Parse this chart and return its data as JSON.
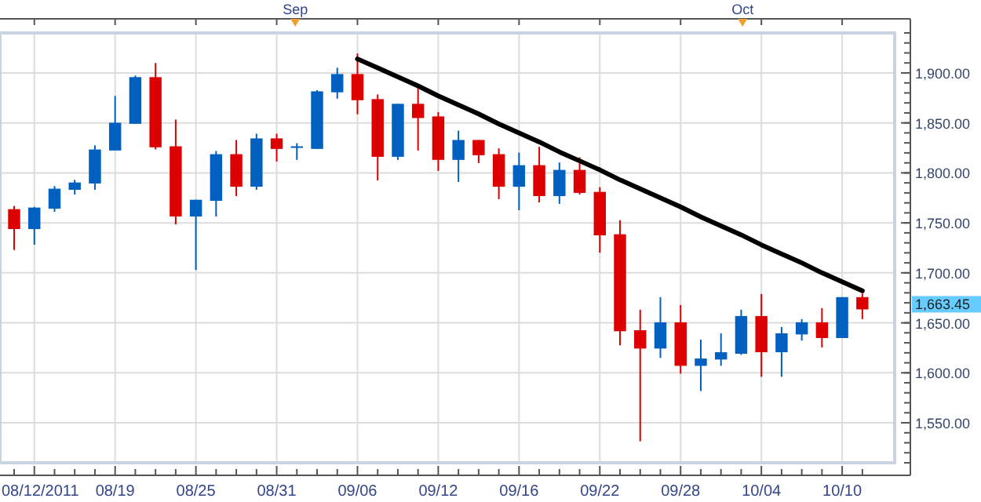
{
  "chart_data": {
    "type": "candlestick",
    "categories": [
      null,
      "08/12/2011",
      null,
      null,
      null,
      "08/19",
      null,
      null,
      null,
      "08/25",
      null,
      null,
      null,
      "08/31",
      null,
      null,
      null,
      "09/06",
      null,
      null,
      null,
      "09/12",
      null,
      null,
      null,
      "09/16",
      null,
      null,
      null,
      "09/22",
      null,
      null,
      null,
      "09/28",
      null,
      null,
      null,
      "10/04",
      null,
      null,
      null,
      "10/10",
      null
    ],
    "ohlc": [
      [
        1763.7,
        1766.9,
        1722.9,
        1743.8
      ],
      [
        1743.8,
        1766.0,
        1728.1,
        1765.3
      ],
      [
        1764.2,
        1786.8,
        1761.1,
        1784.2
      ],
      [
        1783.1,
        1793.1,
        1778.4,
        1790.4
      ],
      [
        1789.4,
        1827.6,
        1783.1,
        1823.4
      ],
      [
        1822.4,
        1876.9,
        1822.4,
        1850.2
      ],
      [
        1849.1,
        1897.4,
        1849.1,
        1895.8
      ],
      [
        1895.8,
        1909.9,
        1823.5,
        1825.6
      ],
      [
        1826.6,
        1853.3,
        1748.5,
        1756.4
      ],
      [
        1756.4,
        1773.1,
        1702.9,
        1773.1
      ],
      [
        1772.1,
        1821.9,
        1756.4,
        1818.7
      ],
      [
        1818.7,
        1832.9,
        1776.8,
        1786.2
      ],
      [
        1786.2,
        1839.2,
        1783.1,
        1834.5
      ],
      [
        1834.5,
        1839.2,
        1811.4,
        1824.0
      ],
      [
        1825.6,
        1829.7,
        1813.0,
        1826.6
      ],
      [
        1824.0,
        1882.7,
        1824.0,
        1881.6
      ],
      [
        1880.6,
        1905.2,
        1874.3,
        1898.9
      ],
      [
        1898.9,
        1919.4,
        1858.6,
        1872.7
      ],
      [
        1873.8,
        1878.5,
        1792.5,
        1816.1
      ],
      [
        1816.1,
        1869.1,
        1813.0,
        1869.1
      ],
      [
        1869.1,
        1887.4,
        1822.4,
        1854.9
      ],
      [
        1856.5,
        1860.7,
        1802.0,
        1813.0
      ],
      [
        1813.0,
        1842.3,
        1791.0,
        1832.9
      ],
      [
        1832.9,
        1832.9,
        1809.8,
        1817.7
      ],
      [
        1818.7,
        1824.5,
        1773.7,
        1786.2
      ],
      [
        1786.2,
        1820.3,
        1762.7,
        1807.7
      ],
      [
        1807.7,
        1826.1,
        1770.5,
        1776.8
      ],
      [
        1776.8,
        1810.4,
        1769.0,
        1803.0
      ],
      [
        1803.0,
        1815.6,
        1778.4,
        1780.0
      ],
      [
        1781.0,
        1785.7,
        1720.2,
        1737.5
      ],
      [
        1738.6,
        1752.7,
        1627.4,
        1641.6
      ],
      [
        1642.6,
        1663.1,
        1531.5,
        1624.3
      ],
      [
        1624.3,
        1675.7,
        1614.9,
        1650.5
      ],
      [
        1650.5,
        1667.8,
        1599.1,
        1607.0
      ],
      [
        1607.0,
        1633.2,
        1581.8,
        1614.3
      ],
      [
        1613.3,
        1639.5,
        1607.0,
        1620.6
      ],
      [
        1619.1,
        1663.1,
        1618.0,
        1656.8
      ],
      [
        1656.8,
        1678.8,
        1596.0,
        1620.6
      ],
      [
        1620.6,
        1645.8,
        1596.0,
        1639.5
      ],
      [
        1638.4,
        1653.7,
        1632.2,
        1650.5
      ],
      [
        1650.5,
        1664.7,
        1625.3,
        1634.8
      ],
      [
        1634.8,
        1675.7,
        1634.8,
        1675.7
      ],
      [
        1675.7,
        1679.3,
        1653.7,
        1663.45
      ]
    ],
    "colors": [
      "#dd0000",
      "#0060c0",
      "#0060c0",
      "#0060c0",
      "#0060c0",
      "#0060c0",
      "#0060c0",
      "#dd0000",
      "#dd0000",
      "#0060c0",
      "#0060c0",
      "#dd0000",
      "#0060c0",
      "#dd0000",
      "#0060c0",
      "#0060c0",
      "#0060c0",
      "#dd0000",
      "#dd0000",
      "#0060c0",
      "#dd0000",
      "#dd0000",
      "#0060c0",
      "#dd0000",
      "#dd0000",
      "#0060c0",
      "#dd0000",
      "#0060c0",
      "#dd0000",
      "#dd0000",
      "#dd0000",
      "#dd0000",
      "#0060c0",
      "#dd0000",
      "#0060c0",
      "#0060c0",
      "#0060c0",
      "#dd0000",
      "#0060c0",
      "#0060c0",
      "#dd0000",
      "#0060c0",
      "#dd0000"
    ],
    "series": [
      {
        "type": "line",
        "values": [
          null,
          null,
          null,
          null,
          null,
          null,
          null,
          null,
          null,
          null,
          null,
          null,
          null,
          null,
          null,
          null,
          null,
          1914,
          1905,
          1896,
          1887,
          1877,
          1868,
          1859,
          1849,
          1840,
          1831,
          1821,
          1812,
          1803,
          1793,
          1784,
          1775,
          1766,
          1756,
          1747,
          1738,
          1728,
          1719,
          1710,
          1700,
          1691,
          1682
        ],
        "color": "#000000"
      }
    ],
    "ylim": [
      1510,
      1940
    ],
    "yticks": [
      {
        "value": 1550,
        "label": "1,550.00"
      },
      {
        "value": 1600,
        "label": "1,600.00"
      },
      {
        "value": 1650,
        "label": "1,650.00"
      },
      {
        "value": 1700,
        "label": "1,700.00"
      },
      {
        "value": 1750,
        "label": "1,750.00"
      },
      {
        "value": 1800,
        "label": "1,800.00"
      },
      {
        "value": 1850,
        "label": "1,850.00"
      },
      {
        "value": 1900,
        "label": "1,900.00"
      }
    ],
    "annotations": [
      "Sep",
      "Oct",
      "1,663.45"
    ],
    "grid": true
  }
}
